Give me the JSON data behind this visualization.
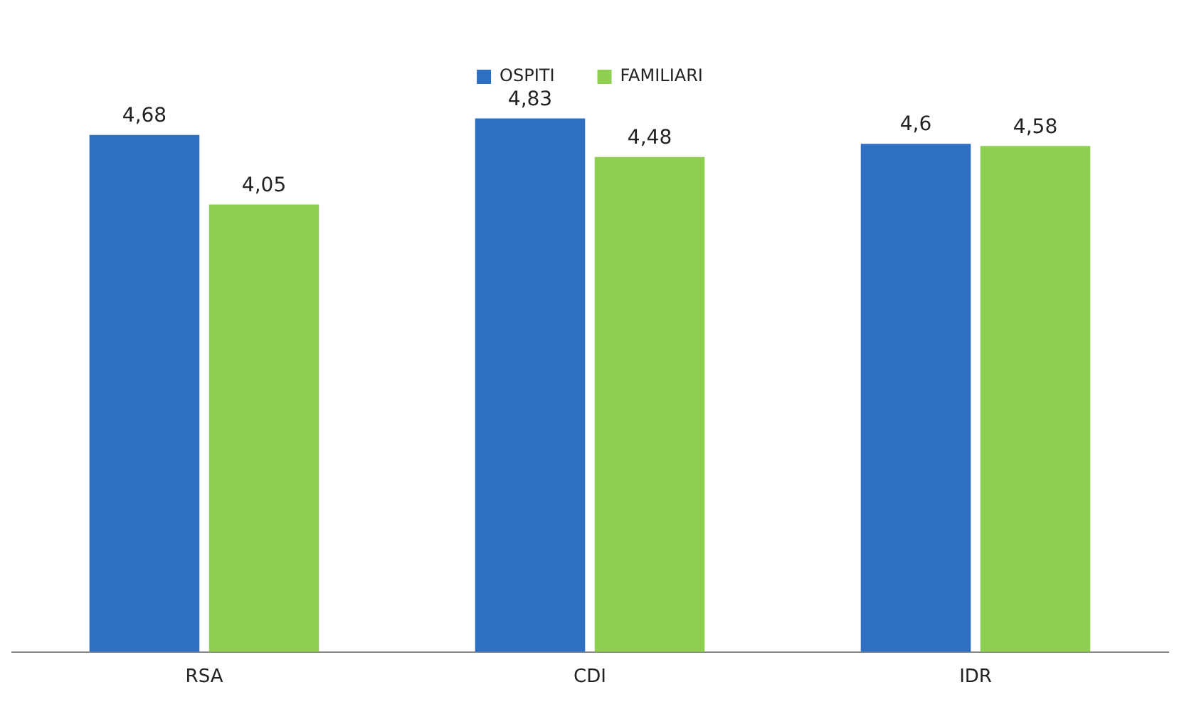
{
  "chart_data": {
    "type": "bar",
    "categories": [
      "RSA",
      "CDI",
      "IDR"
    ],
    "series": [
      {
        "name": "OSPITI",
        "color": "#2f6fc2",
        "values": [
          4.68,
          4.83,
          4.6
        ],
        "value_labels": [
          "4,68",
          "4,83",
          "4,6"
        ]
      },
      {
        "name": "FAMILIARI",
        "color": "#8ecf52",
        "values": [
          4.05,
          4.48,
          4.58
        ],
        "value_labels": [
          "4,05",
          "4,48",
          "4,58"
        ]
      }
    ],
    "legend": "top",
    "grid": false,
    "tick_labels": "x"
  }
}
